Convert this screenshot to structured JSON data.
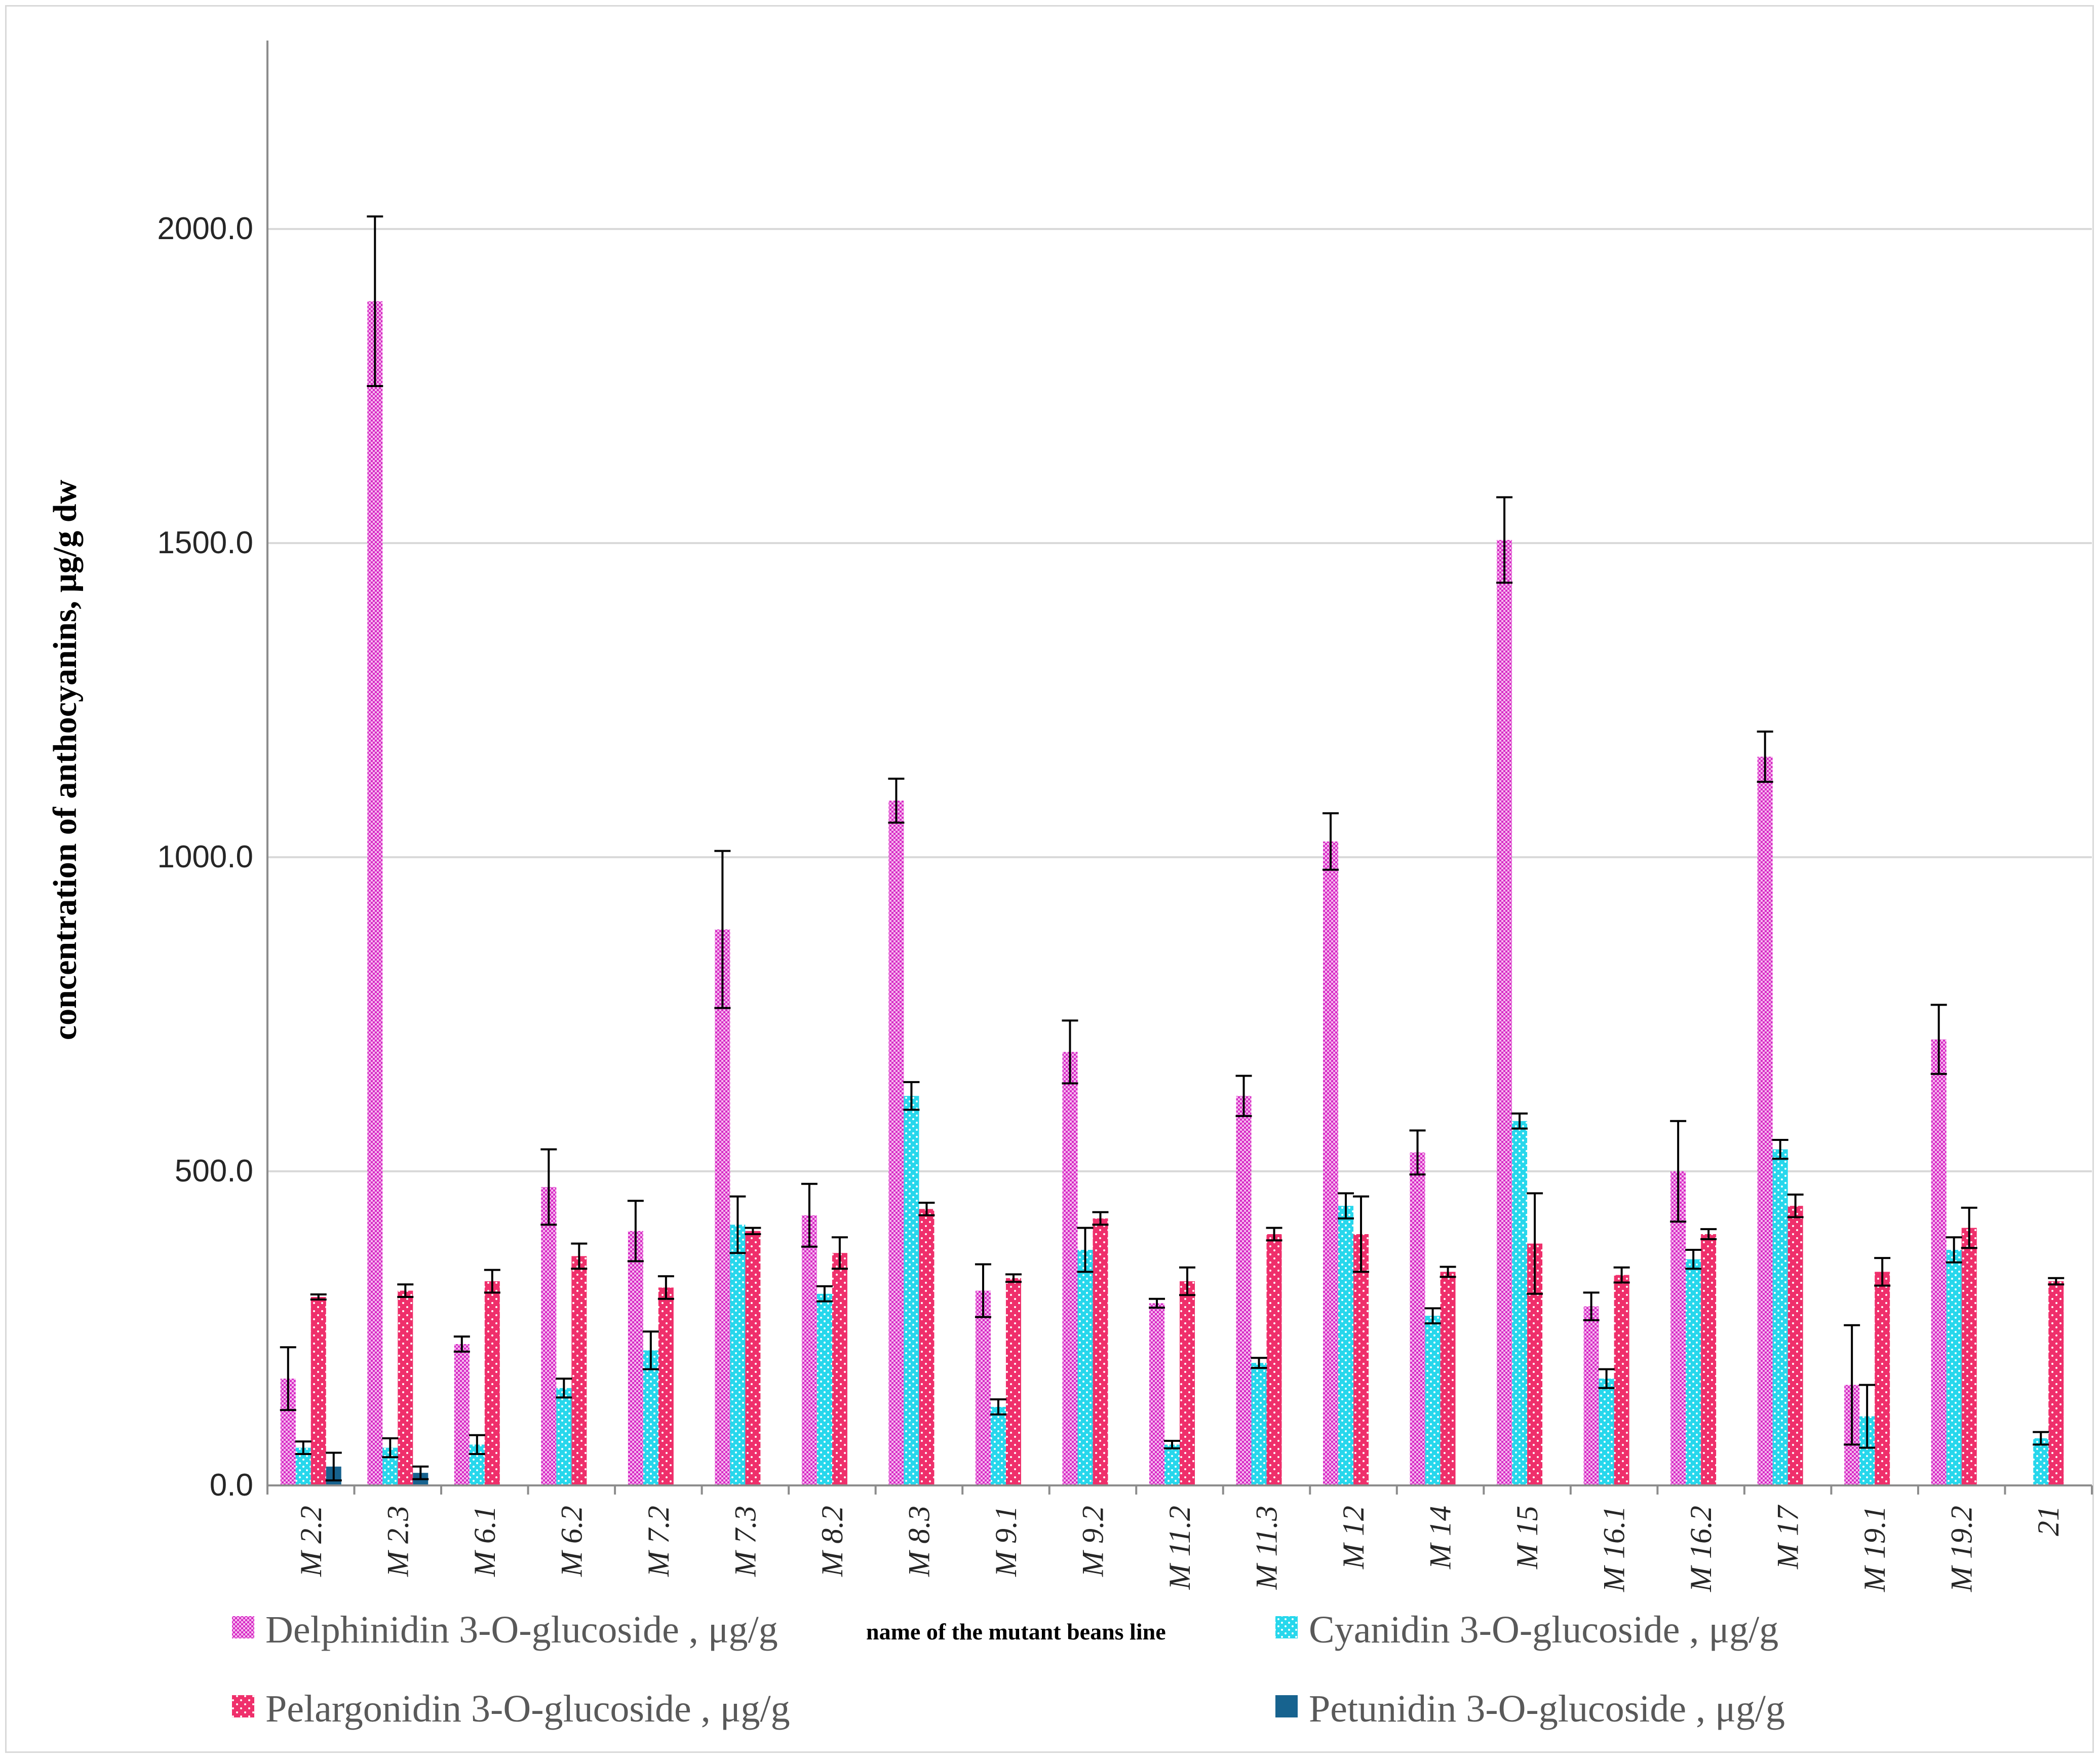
{
  "chart_data": {
    "type": "bar",
    "ylabel": "concentration of anthocyanins, μg/g dw",
    "xlabel": "name of the mutant beans line",
    "ylim": [
      0,
      2000
    ],
    "yticks": [
      "0.0",
      "500.0",
      "1000.0",
      "1500.0",
      "2000.0"
    ],
    "grid": "horizontal",
    "legend_position": "bottom",
    "categories": [
      "M 2.2",
      "M 2.3",
      "M 6.1",
      "M 6.2",
      "M 7.2",
      "M 7.3",
      "M 8.2",
      "M 8.3",
      "M 9.1",
      "M 9.2",
      "M 11.2",
      "M 11.3",
      "M 12",
      "M 14",
      "M 15",
      "M 16.1",
      "M 16.2",
      "M 17",
      "M 19.1",
      "M 19.2",
      "21"
    ],
    "series": [
      {
        "name": "Delphinidin 3-O-glucoside , μg/g",
        "color": "#e23fd0",
        "pattern": "checker",
        "values": [
          170,
          1885,
          225,
          475,
          405,
          885,
          430,
          1090,
          310,
          690,
          290,
          620,
          1025,
          530,
          1505,
          285,
          500,
          1160,
          160,
          710,
          null
        ],
        "errors": [
          50,
          135,
          12,
          60,
          48,
          125,
          50,
          35,
          42,
          50,
          7,
          32,
          45,
          35,
          68,
          22,
          80,
          40,
          95,
          55,
          null
        ]
      },
      {
        "name": "Cyanidin 3-O-glucoside , μg/g",
        "color": "#27d7ec",
        "pattern": "dots",
        "values": [
          60,
          60,
          65,
          155,
          215,
          415,
          305,
          620,
          125,
          375,
          65,
          195,
          445,
          270,
          580,
          170,
          360,
          535,
          110,
          375,
          75
        ],
        "errors": [
          10,
          15,
          15,
          15,
          30,
          45,
          12,
          22,
          12,
          35,
          6,
          8,
          20,
          12,
          12,
          15,
          15,
          15,
          50,
          20,
          10
        ]
      },
      {
        "name": "Pelargonidin 3-O-glucoside , μg/g",
        "color": "#ef2f6b",
        "pattern": "dots",
        "values": [
          300,
          310,
          325,
          365,
          315,
          405,
          370,
          440,
          330,
          425,
          325,
          400,
          400,
          340,
          385,
          335,
          400,
          445,
          340,
          410,
          325
        ],
        "errors": [
          4,
          10,
          18,
          20,
          18,
          5,
          25,
          10,
          6,
          10,
          22,
          10,
          60,
          8,
          80,
          12,
          8,
          18,
          22,
          32,
          5
        ]
      },
      {
        "name": "Petunidin 3-O-glucoside , μg/g",
        "color": "#17638f",
        "pattern": "solid",
        "values": [
          30,
          20,
          null,
          null,
          null,
          null,
          null,
          null,
          null,
          null,
          null,
          null,
          null,
          null,
          null,
          null,
          null,
          null,
          null,
          null,
          null
        ],
        "errors": [
          22,
          10,
          null,
          null,
          null,
          null,
          null,
          null,
          null,
          null,
          null,
          null,
          null,
          null,
          null,
          null,
          null,
          null,
          null,
          null,
          null
        ]
      }
    ]
  }
}
